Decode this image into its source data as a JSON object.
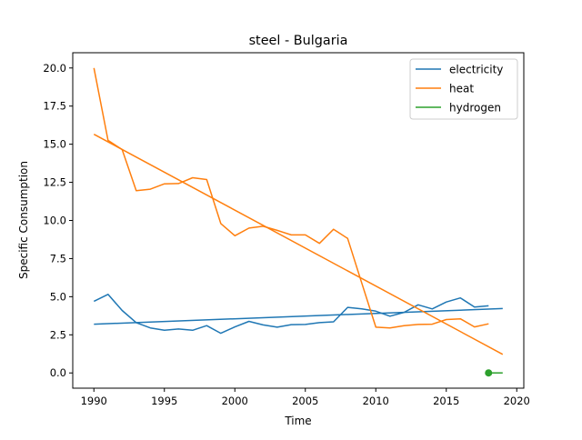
{
  "chart_data": {
    "type": "line",
    "title": "steel - Bulgaria",
    "xlabel": "Time",
    "ylabel": "Specific Consumption",
    "xlim": [
      1988.5,
      2020.5
    ],
    "ylim": [
      -1.0,
      21.0
    ],
    "x_ticks": [
      1990,
      1995,
      2000,
      2005,
      2010,
      2015,
      2020
    ],
    "x_tick_labels": [
      "1990",
      "1995",
      "2000",
      "2005",
      "2010",
      "2015",
      "2020"
    ],
    "y_ticks": [
      0.0,
      2.5,
      5.0,
      7.5,
      10.0,
      12.5,
      15.0,
      17.5,
      20.0
    ],
    "y_tick_labels": [
      "0.0",
      "2.5",
      "5.0",
      "7.5",
      "10.0",
      "12.5",
      "15.0",
      "17.5",
      "20.0"
    ],
    "legend_position": "top-right",
    "grid": false,
    "series": [
      {
        "name": "electricity",
        "color": "#1f77b4",
        "x": [
          1990,
          1991,
          1992,
          1993,
          1994,
          1995,
          1996,
          1997,
          1998,
          1999,
          2000,
          2001,
          2002,
          2003,
          2004,
          2005,
          2006,
          2007,
          2008,
          2009,
          2010,
          2011,
          2012,
          2013,
          2014,
          2015,
          2016,
          2017,
          2018
        ],
        "values": [
          4.7,
          5.15,
          4.1,
          3.3,
          2.95,
          2.8,
          2.88,
          2.8,
          3.1,
          2.6,
          3.02,
          3.38,
          3.15,
          3.0,
          3.17,
          3.18,
          3.3,
          3.35,
          4.3,
          4.2,
          4.05,
          3.72,
          3.97,
          4.47,
          4.2,
          4.65,
          4.92,
          4.32,
          4.4
        ],
        "trend": {
          "x": [
            1990,
            2019
          ],
          "values": [
            3.2,
            4.22
          ]
        }
      },
      {
        "name": "heat",
        "color": "#ff7f0e",
        "x": [
          1990,
          1991,
          1992,
          1993,
          1994,
          1995,
          1996,
          1997,
          1998,
          1999,
          2000,
          2001,
          2002,
          2003,
          2004,
          2005,
          2006,
          2007,
          2008,
          2009,
          2010,
          2011,
          2012,
          2013,
          2014,
          2015,
          2016,
          2017,
          2018
        ],
        "values": [
          20.0,
          15.25,
          14.65,
          11.95,
          12.05,
          12.4,
          12.42,
          12.8,
          12.68,
          9.8,
          9.0,
          9.5,
          9.62,
          9.35,
          9.05,
          9.05,
          8.5,
          9.42,
          8.82,
          5.9,
          3.0,
          2.95,
          3.1,
          3.18,
          3.2,
          3.5,
          3.55,
          3.02,
          3.22
        ],
        "trend": {
          "x": [
            1990,
            2019
          ],
          "values": [
            15.65,
            1.22
          ]
        }
      },
      {
        "name": "hydrogen",
        "color": "#2ca02c",
        "x": [
          2018,
          2019
        ],
        "values": [
          0.0,
          0.0
        ],
        "markers": [
          {
            "x": 2018,
            "value": 0.0
          }
        ]
      }
    ]
  }
}
